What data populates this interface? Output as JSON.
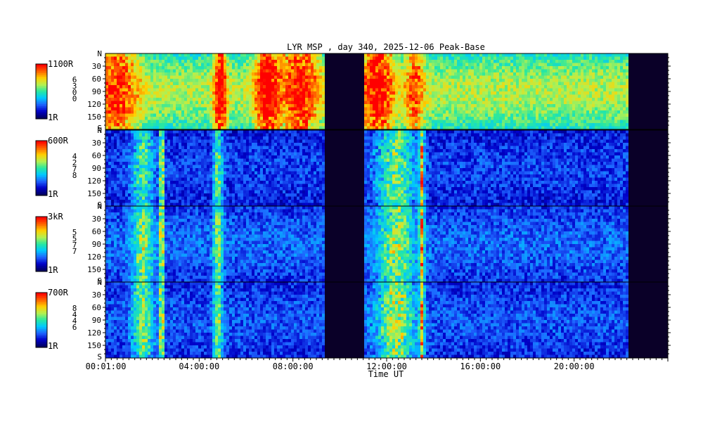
{
  "chart_data": {
    "type": "heatmap",
    "title": "LYR MSP , day 340, 2025-12-06 Peak-Base",
    "xlabel": "Time UT",
    "x_ticks": [
      "00:01:00",
      "04:00:00",
      "08:00:00",
      "12:00:00",
      "16:00:00",
      "20:00:00"
    ],
    "x_tick_hours": [
      0.0167,
      4,
      8,
      12,
      16,
      20
    ],
    "x_range_hours": [
      0,
      24
    ],
    "y_range": [
      0,
      180
    ],
    "y_ticks": [
      30,
      60,
      90,
      120,
      150
    ],
    "y_end_labels": {
      "top": "N",
      "bottom": "S"
    },
    "data_gap_hours": [
      [
        9.35,
        11.0
      ],
      [
        22.35,
        23.95
      ]
    ],
    "panels": [
      {
        "colorbar_max": "1100R",
        "colorbar_min": "1R",
        "wavelength_label": [
          "6",
          "3",
          "0",
          "0"
        ],
        "baseline": 0.55,
        "events": [
          {
            "t": 0.5,
            "w": 0.9,
            "a": 0.35
          },
          {
            "t": 4.9,
            "w": 0.25,
            "a": 0.5
          },
          {
            "t": 6.9,
            "w": 0.5,
            "a": 0.45
          },
          {
            "t": 8.3,
            "w": 0.8,
            "a": 0.4
          },
          {
            "t": 11.6,
            "w": 0.7,
            "a": 0.45
          },
          {
            "t": 13.2,
            "w": 0.4,
            "a": 0.3
          }
        ]
      },
      {
        "colorbar_max": "600R",
        "colorbar_min": "1R",
        "wavelength_label": [
          "4",
          "2",
          "7",
          "8"
        ],
        "baseline": 0.18,
        "events": [
          {
            "t": 1.6,
            "w": 0.45,
            "a": 0.3
          },
          {
            "t": 2.4,
            "w": 0.08,
            "a": 0.6
          },
          {
            "t": 4.8,
            "w": 0.2,
            "a": 0.35
          },
          {
            "t": 12.4,
            "w": 0.8,
            "a": 0.35
          },
          {
            "t": 13.5,
            "w": 0.1,
            "a": 0.5
          }
        ]
      },
      {
        "colorbar_max": "3kR",
        "colorbar_min": "1R",
        "wavelength_label": [
          "5",
          "5",
          "7",
          "7"
        ],
        "baseline": 0.22,
        "events": [
          {
            "t": 1.6,
            "w": 0.45,
            "a": 0.35
          },
          {
            "t": 2.4,
            "w": 0.08,
            "a": 0.6
          },
          {
            "t": 4.8,
            "w": 0.2,
            "a": 0.35
          },
          {
            "t": 12.4,
            "w": 0.8,
            "a": 0.35
          },
          {
            "t": 13.5,
            "w": 0.1,
            "a": 0.5
          }
        ]
      },
      {
        "colorbar_max": "700R",
        "colorbar_min": "1R",
        "wavelength_label": [
          "8",
          "4",
          "4",
          "6"
        ],
        "baseline": 0.2,
        "events": [
          {
            "t": 1.6,
            "w": 0.45,
            "a": 0.35
          },
          {
            "t": 2.4,
            "w": 0.08,
            "a": 0.6
          },
          {
            "t": 4.8,
            "w": 0.2,
            "a": 0.35
          },
          {
            "t": 12.4,
            "w": 0.8,
            "a": 0.4
          },
          {
            "t": 13.5,
            "w": 0.1,
            "a": 0.5
          }
        ]
      }
    ],
    "colormap": [
      "#000060",
      "#0000c8",
      "#1e64ff",
      "#00c8ff",
      "#28e8a0",
      "#b4f050",
      "#ffd200",
      "#ff6400",
      "#ff0000"
    ]
  }
}
